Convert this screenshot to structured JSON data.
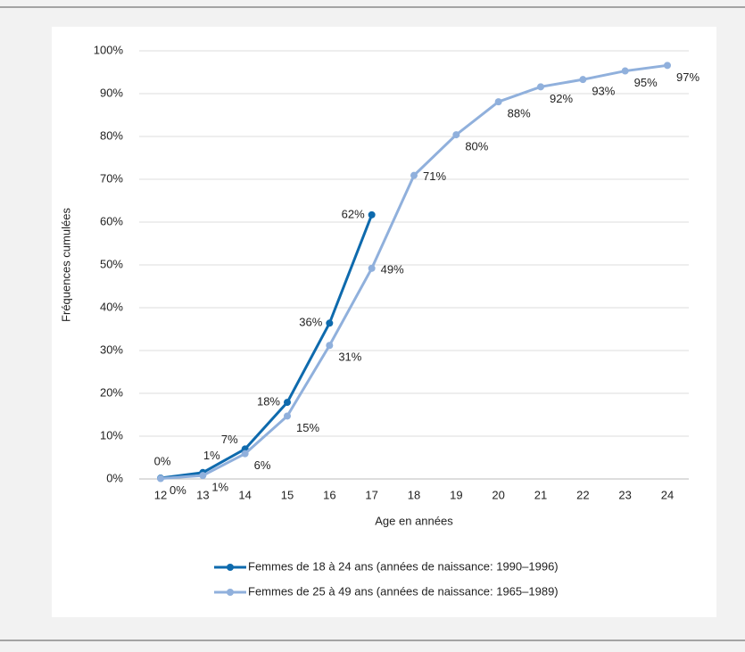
{
  "chart_data": {
    "type": "line",
    "xlabel": "Age en années",
    "ylabel": "Fréquences cumulées",
    "categories": [
      12,
      13,
      14,
      15,
      16,
      17,
      18,
      19,
      20,
      21,
      22,
      23,
      24
    ],
    "series": [
      {
        "name": "Femmes de 18 à 24 ans (années de naissance: 1990–1996)",
        "color": "#0e6aad",
        "values": [
          0.2,
          1.5,
          7,
          17.9,
          36.4,
          61.7,
          null,
          null,
          null,
          null,
          null,
          null,
          null
        ],
        "value_labels": [
          "0%",
          "1%",
          "7%",
          "18%",
          "36%",
          "62%",
          null,
          null,
          null,
          null,
          null,
          null,
          null
        ]
      },
      {
        "name": "Femmes de 25 à 49 ans (années de naissance: 1965–1989)",
        "color": "#90b0dc",
        "values": [
          0.1,
          0.8,
          5.9,
          14.7,
          31.2,
          49.2,
          70.9,
          80.4,
          88.1,
          91.6,
          93.3,
          95.3,
          96.6
        ],
        "value_labels": [
          "0%",
          "1%",
          "6%",
          "15%",
          "31%",
          "49%",
          "71%",
          "80%",
          "88%",
          "92%",
          "93%",
          "95%",
          "97%"
        ]
      }
    ],
    "ylim": [
      0,
      100
    ],
    "yticks": [
      {
        "value": 0,
        "label": "0%"
      },
      {
        "value": 10,
        "label": "10%"
      },
      {
        "value": 20,
        "label": "20%"
      },
      {
        "value": 30,
        "label": "30%"
      },
      {
        "value": 40,
        "label": "40%"
      },
      {
        "value": 50,
        "label": "50%"
      },
      {
        "value": 60,
        "label": "60%"
      },
      {
        "value": 70,
        "label": "70%"
      },
      {
        "value": 80,
        "label": "80%"
      },
      {
        "value": 90,
        "label": "90%"
      },
      {
        "value": 100,
        "label": "100%"
      }
    ],
    "grid": true,
    "legend": "bottom"
  }
}
